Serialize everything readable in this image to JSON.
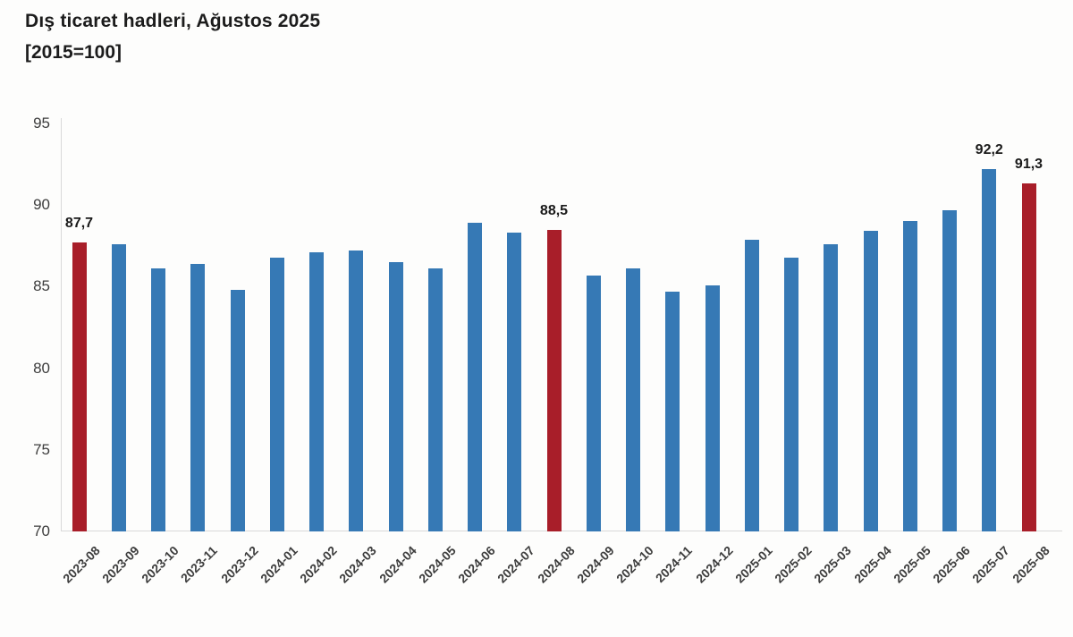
{
  "header": {
    "title": "Dış ticaret hadleri, Ağustos 2025",
    "subtitle": "[2015=100]"
  },
  "chart_data": {
    "type": "bar",
    "title": "Dış ticaret hadleri, Ağustos 2025",
    "subtitle": "[2015=100]",
    "xlabel": "",
    "ylabel": "",
    "ylim": [
      70,
      95
    ],
    "yticks": [
      70,
      75,
      80,
      85,
      90,
      95
    ],
    "grid": false,
    "legend": "none",
    "categories": [
      "2023-08",
      "2023-09",
      "2023-10",
      "2023-11",
      "2023-12",
      "2024-01",
      "2024-02",
      "2024-03",
      "2024-04",
      "2024-05",
      "2024-06",
      "2024-07",
      "2024-08",
      "2024-09",
      "2024-10",
      "2024-11",
      "2024-12",
      "2025-01",
      "2025-02",
      "2025-03",
      "2025-04",
      "2025-05",
      "2025-06",
      "2025-07",
      "2025-08"
    ],
    "values": [
      87.7,
      87.6,
      86.1,
      86.4,
      84.8,
      86.8,
      87.1,
      87.2,
      86.5,
      86.1,
      88.9,
      88.3,
      88.5,
      85.7,
      86.1,
      84.7,
      85.1,
      87.9,
      86.8,
      87.6,
      88.4,
      89.0,
      89.7,
      92.2,
      91.3
    ],
    "highlight_indices": [
      0,
      12,
      24
    ],
    "point_labels": [
      {
        "index": 0,
        "text": "87,7"
      },
      {
        "index": 12,
        "text": "88,5"
      },
      {
        "index": 23,
        "text": "92,2"
      },
      {
        "index": 24,
        "text": "91,3"
      }
    ],
    "colors": {
      "bar_default": "#3679b5",
      "bar_highlight": "#a81e29",
      "axis_line": "#d9d9d9",
      "title_text": "#1c1c1c",
      "tick_text": "#3d3d3d",
      "label_text": "#1a1a1a",
      "background": "#fdfdfc"
    }
  }
}
